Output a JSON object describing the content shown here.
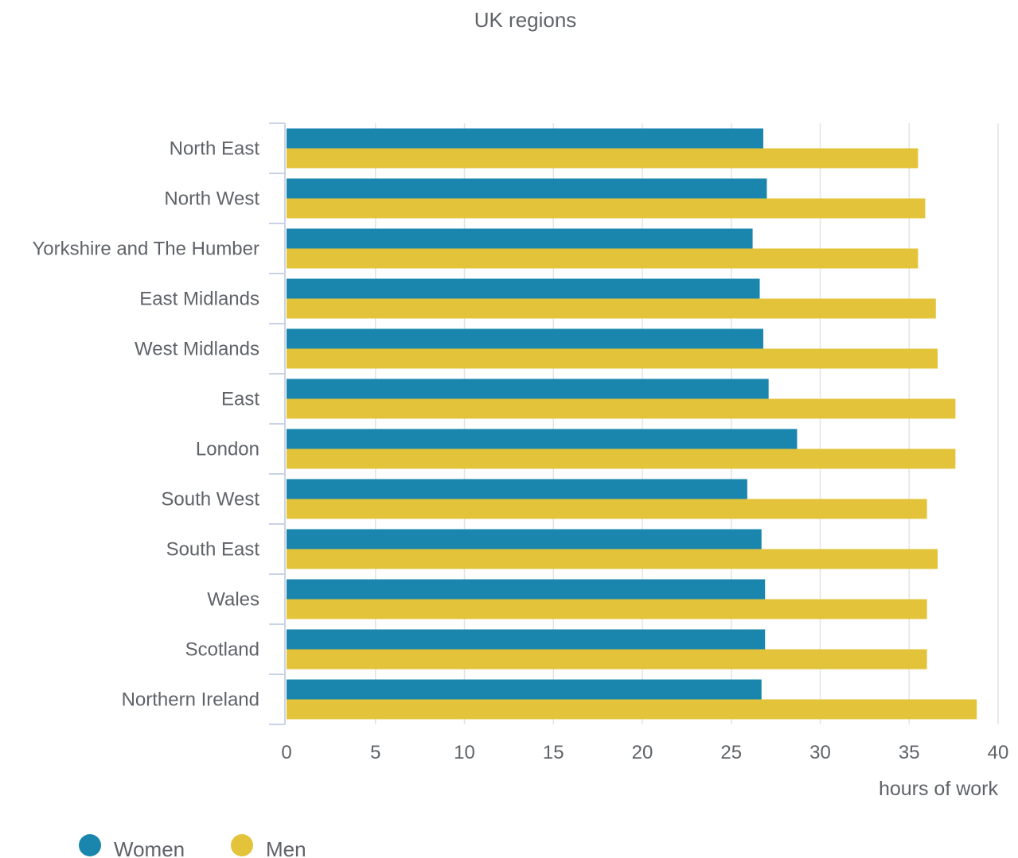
{
  "chart_data": {
    "type": "bar",
    "orientation": "horizontal",
    "title": "UK regions",
    "xlabel": "hours of work",
    "ylabel": "",
    "xlim": [
      0,
      40
    ],
    "xticks": [
      0,
      5,
      10,
      15,
      20,
      25,
      30,
      35,
      40
    ],
    "grid": true,
    "legend_position": "bottom-left",
    "categories": [
      "North East",
      "North West",
      "Yorkshire and The Humber",
      "East Midlands",
      "West Midlands",
      "East",
      "London",
      "South West",
      "South East",
      "Wales",
      "Scotland",
      "Northern Ireland"
    ],
    "series": [
      {
        "name": "Women",
        "color": "#1a86ad",
        "values": [
          26.8,
          27.0,
          26.2,
          26.6,
          26.8,
          27.1,
          28.7,
          25.9,
          26.7,
          26.9,
          26.9,
          26.7
        ]
      },
      {
        "name": "Men",
        "color": "#e3c339",
        "values": [
          35.5,
          35.9,
          35.5,
          36.5,
          36.6,
          37.6,
          37.6,
          36.0,
          36.6,
          36.0,
          36.0,
          38.8
        ]
      }
    ]
  }
}
